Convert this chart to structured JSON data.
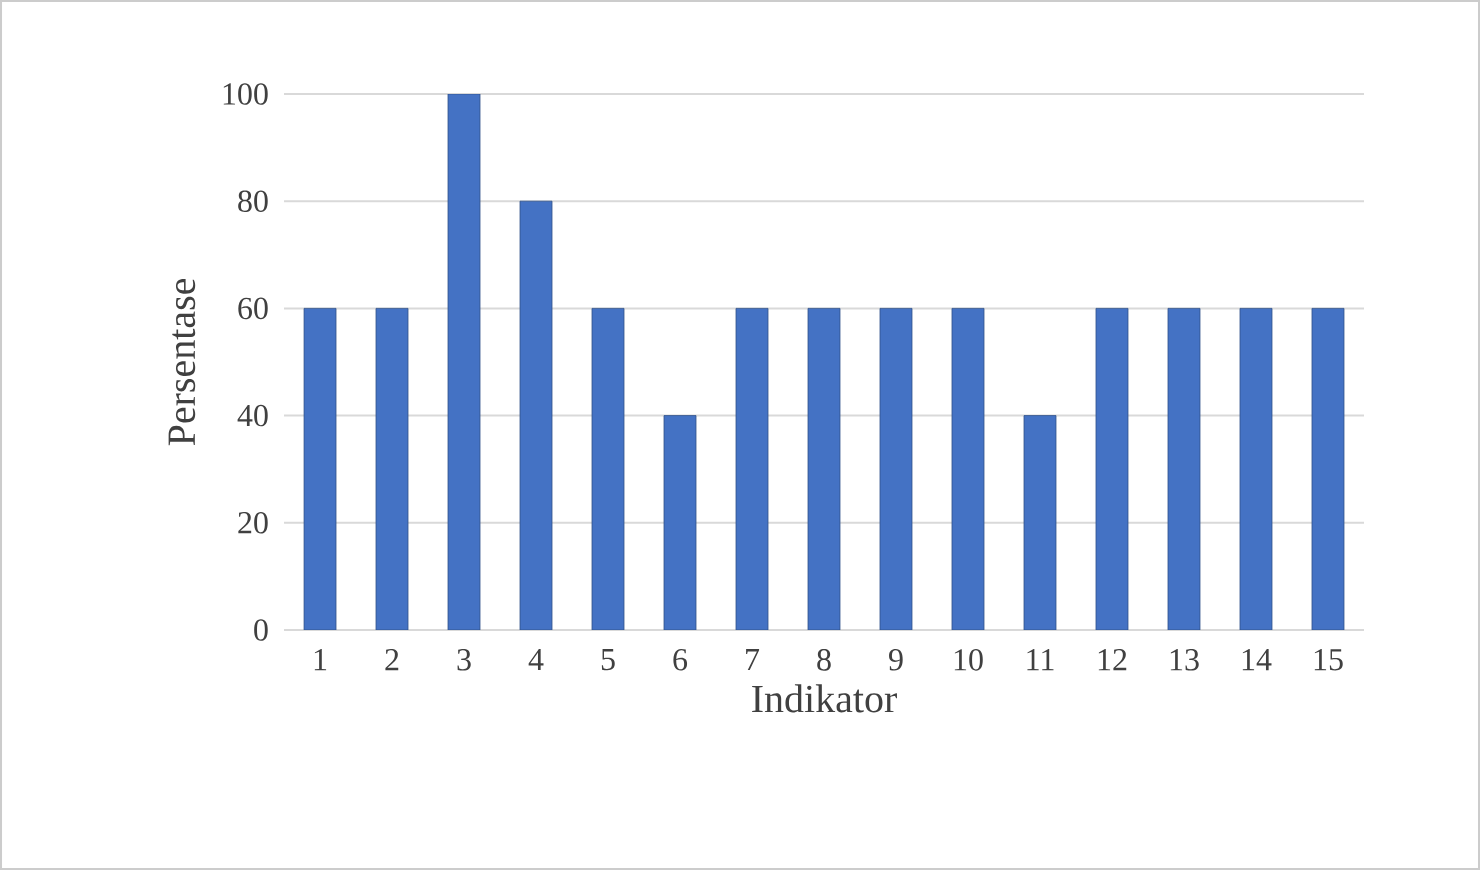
{
  "chart_data": {
    "type": "bar",
    "xlabel": "Indikator",
    "ylabel": "Persentase",
    "categories": [
      "1",
      "2",
      "3",
      "4",
      "5",
      "6",
      "7",
      "8",
      "9",
      "10",
      "11",
      "12",
      "13",
      "14",
      "15"
    ],
    "values": [
      60,
      60,
      100,
      80,
      60,
      40,
      60,
      60,
      60,
      60,
      40,
      60,
      60,
      60,
      60
    ],
    "color": "#4472c4",
    "ylim": [
      0,
      100
    ],
    "yticks": [
      0,
      20,
      40,
      60,
      80,
      100
    ],
    "grid": "y"
  }
}
